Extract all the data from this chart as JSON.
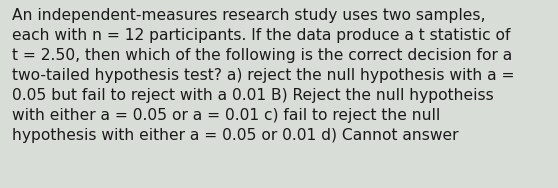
{
  "text": "An independent-measures research study uses two samples,\neach with n = 12 participants. If the data produce a t statistic of\nt = 2.50, then which of the following is the correct decision for a\ntwo-tailed hypothesis test? a) reject the null hypothesis with a =\n0.05 but fail to reject with a 0.01 B) Reject the null hypotheiss\nwith either a = 0.05 or a = 0.01 c) fail to reject the null\nhypothesis with either a = 0.05 or 0.01 d) Cannot answer",
  "background_color": "#d9ddd8",
  "text_color": "#1a1a1a",
  "font_size": 11.2,
  "fig_width": 5.58,
  "fig_height": 1.88,
  "dpi": 100
}
